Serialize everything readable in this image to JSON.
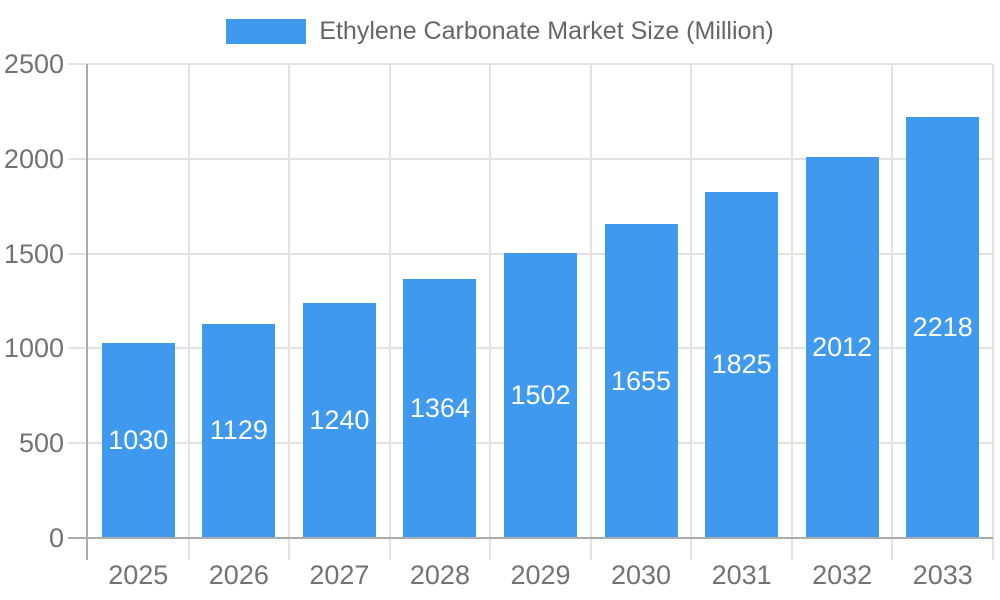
{
  "chart_data": {
    "type": "bar",
    "title": "Ethylene Carbonate Market Size (Million)",
    "categories": [
      "2025",
      "2026",
      "2027",
      "2028",
      "2029",
      "2030",
      "2031",
      "2032",
      "2033"
    ],
    "values": [
      1030,
      1129,
      1240,
      1364,
      1502,
      1655,
      1825,
      2012,
      2218
    ],
    "xlabel": "",
    "ylabel": "",
    "ylim": [
      0,
      2500
    ],
    "y_ticks": [
      0,
      500,
      1000,
      1500,
      2000,
      2500
    ],
    "grid": true,
    "legend_position": "top-center",
    "bar_labels_inside": true,
    "colors": {
      "bar": "#3E99EF",
      "grid": "#E2E2E2",
      "axis": "#ABABAB",
      "tick_label": "#737373",
      "legend_text": "#666666",
      "bar_label": "#FFFFFF",
      "background": "#FFFFFF"
    }
  }
}
